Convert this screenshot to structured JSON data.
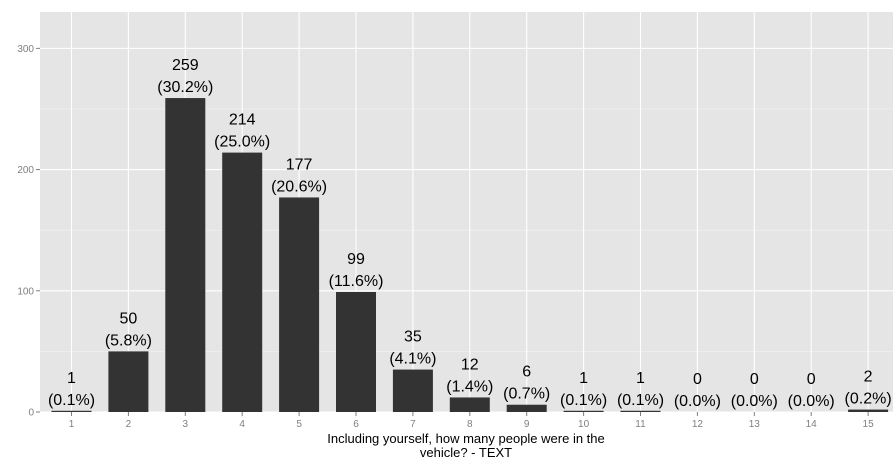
{
  "chart_data": {
    "type": "bar",
    "categories": [
      "1",
      "2",
      "3",
      "4",
      "5",
      "6",
      "7",
      "8",
      "9",
      "10",
      "11",
      "12",
      "13",
      "14",
      "15"
    ],
    "values": [
      1,
      50,
      259,
      214,
      177,
      99,
      35,
      12,
      6,
      1,
      1,
      0,
      0,
      0,
      2
    ],
    "value_labels": [
      "1",
      "50",
      "259",
      "214",
      "177",
      "99",
      "35",
      "12",
      "6",
      "1",
      "1",
      "0",
      "0",
      "0",
      "2"
    ],
    "percent_labels": [
      "(0.1%)",
      "(5.8%)",
      "(30.2%)",
      "(25.0%)",
      "(20.6%)",
      "(11.6%)",
      "(4.1%)",
      "(1.4%)",
      "(0.7%)",
      "(0.1%)",
      "(0.1%)",
      "(0.0%)",
      "(0.0%)",
      "(0.0%)",
      "(0.2%)"
    ],
    "xlabel_lines": [
      "Including yourself, how many people were in the",
      "vehicle? - TEXT"
    ],
    "ylabel": "",
    "ylim": [
      0,
      330
    ],
    "yticks": [
      0,
      100,
      200,
      300
    ],
    "ytick_labels": [
      "0",
      "100",
      "200",
      "300"
    ],
    "grid": true,
    "colors": {
      "panel_background": "#e5e5e5",
      "gridline": "#ffffff",
      "bar": "#333333",
      "tick_text": "#7f7f7f",
      "tick_mark": "#7f7f7f"
    }
  }
}
